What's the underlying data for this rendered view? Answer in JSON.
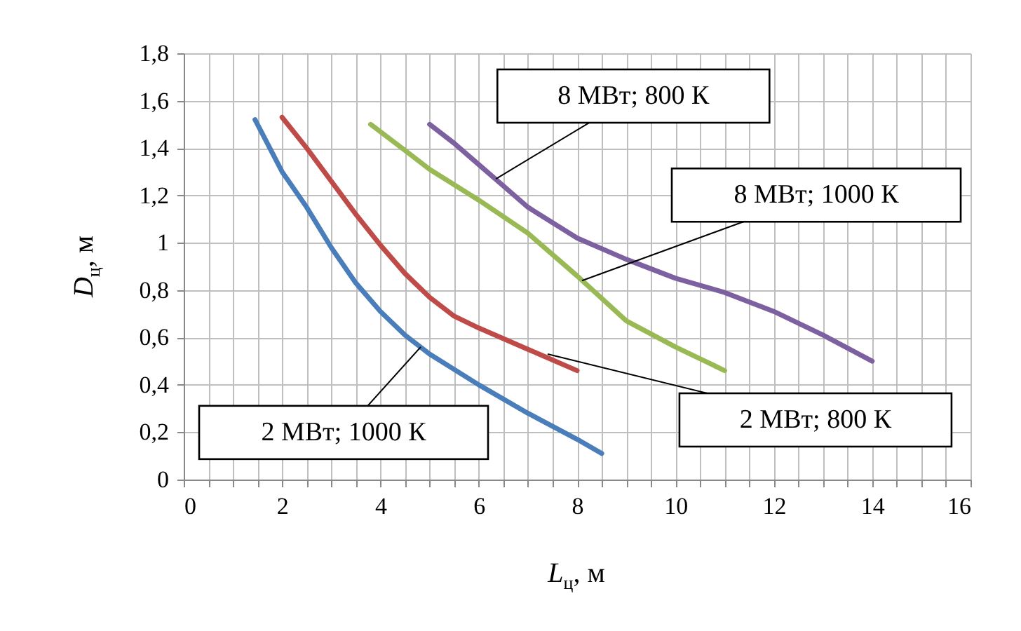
{
  "chart_data": {
    "type": "line",
    "xlabel": "L$_{ц}$, м",
    "ylabel": "D$_{ц}$, м",
    "xlim": [
      0,
      16
    ],
    "ylim": [
      0,
      1.8
    ],
    "xticks": [
      0,
      {
        "value": 0.5,
        "label": null
      },
      {
        "value": 1,
        "label": null
      },
      {
        "value": 1.5,
        "label": null
      },
      2,
      {
        "value": 2.5,
        "label": null
      },
      {
        "value": 3,
        "label": null
      },
      {
        "value": 3.5,
        "label": null
      },
      4,
      {
        "value": 4.5,
        "label": null
      },
      {
        "value": 5,
        "label": null
      },
      {
        "value": 5.5,
        "label": null
      },
      6,
      {
        "value": 6.5,
        "label": null
      },
      {
        "value": 7,
        "label": null
      },
      {
        "value": 7.5,
        "label": null
      },
      8,
      {
        "value": 8.5,
        "label": null
      },
      {
        "value": 9,
        "label": null
      },
      {
        "value": 9.5,
        "label": null
      },
      10,
      {
        "value": 10.5,
        "label": null
      },
      {
        "value": 11,
        "label": null
      },
      {
        "value": 11.5,
        "label": null
      },
      12,
      {
        "value": 12.5,
        "label": null
      },
      {
        "value": 13,
        "label": null
      },
      {
        "value": 13.5,
        "label": null
      },
      14,
      {
        "value": 14.5,
        "label": null
      },
      {
        "value": 15,
        "label": null
      },
      {
        "value": 15.5,
        "label": null
      },
      16
    ],
    "yticks": [
      0,
      {
        "value": 0.2,
        "label": "0,2"
      },
      {
        "value": 0.4,
        "label": "0,4"
      },
      {
        "value": 0.6,
        "label": "0,6"
      },
      {
        "value": 0.8,
        "label": "0,8"
      },
      1,
      {
        "value": 1.2,
        "label": "1,2"
      },
      {
        "value": 1.4,
        "label": "1,4"
      },
      {
        "value": 1.6,
        "label": "1,6"
      },
      {
        "value": 1.8,
        "label": "1,8"
      }
    ],
    "grid": true,
    "legend": false,
    "marker": "none",
    "line_style": "solid",
    "series": [
      {
        "color": "#4a7ebb",
        "x": [
          1.45,
          2,
          2.5,
          3,
          3.5,
          4,
          4.5,
          5,
          6,
          7,
          8,
          8.5
        ],
        "values": [
          1.52,
          1.3,
          1.15,
          0.98,
          0.83,
          0.71,
          0.61,
          0.53,
          0.4,
          0.28,
          0.17,
          0.11
        ]
      },
      {
        "color": "#be4b48",
        "x": [
          2,
          2.5,
          3,
          3.5,
          4,
          4.5,
          5,
          5.5,
          6,
          7,
          8
        ],
        "values": [
          1.53,
          1.4,
          1.26,
          1.12,
          0.99,
          0.87,
          0.77,
          0.69,
          0.64,
          0.55,
          0.46
        ]
      },
      {
        "color": "#98b954",
        "x": [
          3.8,
          4.5,
          5,
          6,
          7,
          8,
          9,
          10,
          11
        ],
        "values": [
          1.5,
          1.39,
          1.31,
          1.18,
          1.04,
          0.86,
          0.67,
          0.56,
          0.46
        ]
      },
      {
        "color": "#7d60a0",
        "x": [
          5,
          5.5,
          6,
          6.5,
          7,
          8,
          9,
          10,
          11,
          12,
          13,
          14
        ],
        "values": [
          1.5,
          1.42,
          1.33,
          1.24,
          1.15,
          1.02,
          0.93,
          0.85,
          0.79,
          0.71,
          0.61,
          0.5
        ]
      }
    ],
    "annotations": [
      {
        "text": "8 МВт; 800 К",
        "x": 6.35,
        "y": 1.27
      },
      {
        "text": "8 МВт; 1000 К",
        "x": 8.1,
        "y": 0.84
      },
      {
        "text": "2 МВт; 800 К",
        "x": 7.4,
        "y": 0.53
      },
      {
        "text": "2 МВт; 1000 К",
        "x": 4.82,
        "y": 0.56
      }
    ]
  }
}
